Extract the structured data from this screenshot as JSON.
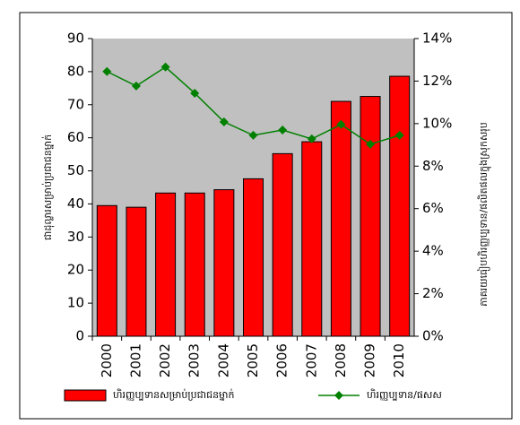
{
  "chart_data": {
    "type": "bar",
    "categories": [
      "2000",
      "2001",
      "2002",
      "2003",
      "2004",
      "2005",
      "2006",
      "2007",
      "2008",
      "2009",
      "2010"
    ],
    "series": [
      {
        "name": "ហិរញ្ញប្បទានសម្រាប់ប្រជាជនម្នាក់",
        "type": "bar",
        "color": "#ff0000",
        "values": [
          39.5,
          39,
          43.3,
          43.3,
          44.3,
          47.6,
          55.2,
          58.8,
          71,
          72.5,
          78.6
        ]
      },
      {
        "name": "ហិរញ្ញប្បទាន/ផសស",
        "type": "line",
        "axis": "y2",
        "color": "#008000",
        "values": [
          12.45,
          11.77,
          12.66,
          11.43,
          10.08,
          9.45,
          9.7,
          9.28,
          9.96,
          9.03,
          9.45
        ]
      }
    ],
    "y_label": "ជាដុល្លារសម្រាប់ប្រជាជនម្នាក់",
    "y2_label": "ភាគរយធៀបហិរញ្ញប្បទាន/ផលិតផលក្នុងស្រុកសរុប",
    "ylim": [
      0,
      90
    ],
    "yticks": [
      0,
      10,
      20,
      30,
      40,
      50,
      60,
      70,
      80,
      90
    ],
    "y2lim": [
      0,
      14
    ],
    "y2ticks": [
      {
        "value": 0,
        "label": "0%"
      },
      {
        "value": 2,
        "label": "2%"
      },
      {
        "value": 4,
        "label": "4%"
      },
      {
        "value": 6,
        "label": "6%"
      },
      {
        "value": 8,
        "label": "8%"
      },
      {
        "value": 10,
        "label": "10%"
      },
      {
        "value": 12,
        "label": "12%"
      },
      {
        "value": 14,
        "label": "14%"
      }
    ],
    "grid": false,
    "legend": "bottom",
    "background": "#c0c0c0"
  }
}
